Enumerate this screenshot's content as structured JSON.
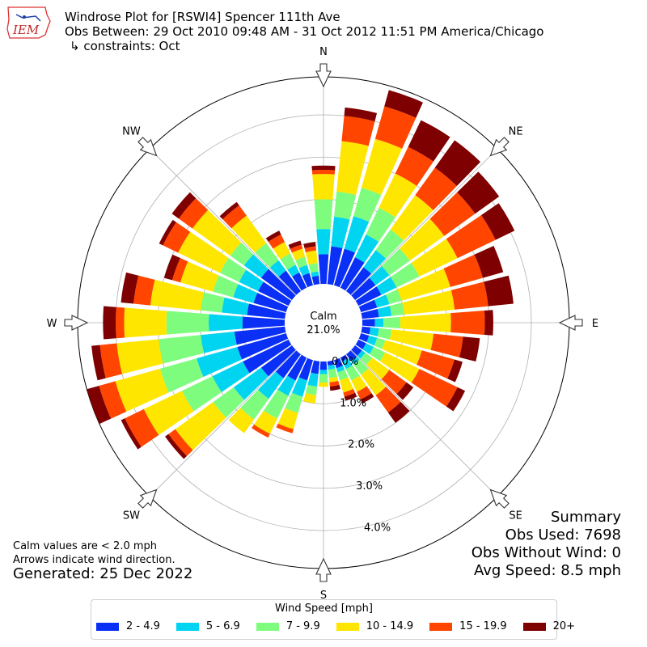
{
  "header": {
    "logo_text": "IEM",
    "title_line1": "Windrose Plot for [RSWI4] Spencer 111th Ave",
    "title_line2": "Obs Between: 29 Oct 2010 09:48 AM - 31 Oct 2012 11:51 PM America/Chicago",
    "title_line3": "↳ constraints: Oct"
  },
  "notes": {
    "calm_note": "Calm values are < 2.0 mph",
    "arrow_note": "Arrows indicate wind direction.",
    "generated": "Generated: 25 Dec 2022"
  },
  "summary": {
    "title": "Summary",
    "obs_used": "Obs Used: 7698",
    "obs_without_wind": "Obs Without Wind: 0",
    "avg_speed": "Avg Speed: 8.5 mph"
  },
  "legend": {
    "title": "Wind Speed [mph]"
  },
  "chart_data": {
    "type": "windrose",
    "calm_label": "Calm",
    "calm_percent": "21.0%",
    "radial_tick_labels": [
      "0.0%",
      "1.0%",
      "2.0%",
      "3.0%",
      "4.0%"
    ],
    "radial_ticks": [
      0,
      1,
      2,
      3,
      4
    ],
    "compass_labels": [
      "N",
      "NE",
      "E",
      "SE",
      "S",
      "SW",
      "W",
      "NW"
    ],
    "speed_bins": [
      {
        "label": "2 - 4.9",
        "color": "#0a2ff5"
      },
      {
        "label": "5 - 6.9",
        "color": "#00d4f0"
      },
      {
        "label": "7 - 9.9",
        "color": "#7dfc7d"
      },
      {
        "label": "10 - 14.9",
        "color": "#ffe600"
      },
      {
        "label": "15 - 19.9",
        "color": "#ff4500"
      },
      {
        "label": "20+",
        "color": "#7f0000"
      }
    ],
    "directions_deg": [
      0,
      10,
      20,
      30,
      40,
      50,
      60,
      70,
      80,
      90,
      100,
      110,
      120,
      130,
      140,
      150,
      160,
      170,
      180,
      190,
      200,
      210,
      220,
      230,
      240,
      250,
      260,
      270,
      280,
      290,
      300,
      310,
      320,
      330,
      340,
      350
    ],
    "cumulative_percent": [
      [
        0.7,
        1.3,
        2.0,
        2.6,
        2.7,
        2.8
      ],
      [
        0.9,
        1.6,
        2.2,
        3.4,
        4.0,
        4.2
      ],
      [
        0.9,
        1.7,
        2.4,
        3.6,
        4.4,
        4.8
      ],
      [
        0.8,
        1.4,
        2.1,
        3.0,
        3.7,
        4.4
      ],
      [
        0.7,
        1.2,
        1.8,
        2.8,
        3.6,
        4.4
      ],
      [
        0.6,
        1.0,
        1.6,
        2.6,
        3.5,
        4.2
      ],
      [
        0.6,
        1.0,
        1.6,
        2.6,
        3.6,
        4.1
      ],
      [
        0.4,
        0.7,
        1.0,
        2.2,
        3.0,
        3.5
      ],
      [
        0.4,
        0.7,
        1.0,
        2.2,
        3.0,
        3.6
      ],
      [
        0.3,
        0.5,
        0.9,
        2.1,
        2.9,
        3.1
      ],
      [
        0.2,
        0.4,
        0.7,
        1.7,
        2.4,
        2.8
      ],
      [
        0.2,
        0.4,
        0.6,
        1.5,
        2.3,
        2.5
      ],
      [
        0.2,
        0.4,
        0.7,
        1.6,
        2.6,
        2.8
      ],
      [
        0.2,
        0.3,
        0.5,
        1.0,
        1.5,
        1.7
      ],
      [
        0.2,
        0.3,
        0.6,
        1.2,
        1.7,
        2.0
      ],
      [
        0.1,
        0.3,
        0.6,
        0.9,
        1.1,
        1.2
      ],
      [
        0.2,
        0.3,
        0.5,
        0.8,
        0.9,
        1.0
      ],
      [
        0.1,
        0.2,
        0.4,
        0.5,
        0.6,
        0.7
      ],
      [
        0.2,
        0.3,
        0.5,
        0.6,
        0.6,
        0.6
      ],
      [
        0.3,
        0.6,
        0.8,
        1.0,
        1.0,
        1.0
      ],
      [
        0.5,
        0.9,
        1.3,
        1.7,
        1.8,
        1.8
      ],
      [
        0.6,
        1.0,
        1.6,
        2.0,
        2.1,
        2.1
      ],
      [
        0.7,
        1.3,
        1.9,
        2.3,
        2.3,
        2.3
      ],
      [
        0.9,
        1.7,
        2.3,
        3.4,
        3.6,
        3.7
      ],
      [
        1.2,
        2.0,
        2.8,
        3.8,
        4.3,
        4.4
      ],
      [
        1.2,
        2.2,
        3.1,
        4.2,
        4.6,
        4.9
      ],
      [
        1.2,
        2.0,
        3.0,
        4.0,
        4.4,
        4.6
      ],
      [
        1.0,
        1.8,
        2.8,
        3.8,
        4.0,
        4.3
      ],
      [
        0.9,
        1.5,
        2.0,
        3.2,
        3.6,
        3.9
      ],
      [
        0.8,
        1.3,
        1.8,
        2.6,
        2.8,
        3.0
      ],
      [
        0.8,
        1.3,
        1.8,
        2.9,
        3.3,
        3.4
      ],
      [
        0.9,
        1.4,
        1.8,
        2.9,
        3.3,
        3.5
      ],
      [
        0.6,
        0.9,
        1.4,
        2.2,
        2.5,
        2.6
      ],
      [
        0.4,
        0.6,
        0.9,
        1.2,
        1.4,
        1.5
      ],
      [
        0.3,
        0.5,
        0.7,
        0.9,
        1.0,
        1.1
      ],
      [
        0.2,
        0.3,
        0.5,
        0.8,
        0.9,
        1.0
      ]
    ],
    "rmax": 4.9,
    "grid": true
  }
}
